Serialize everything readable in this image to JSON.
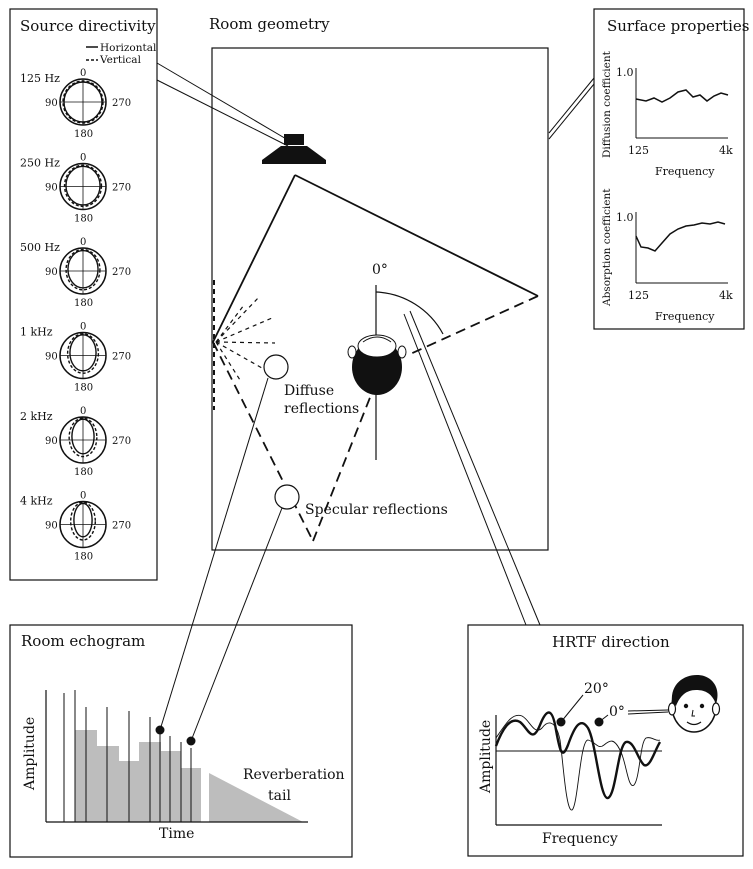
{
  "source_directivity": {
    "title": "Source directivity",
    "legend": {
      "horizontal": "Horizontal",
      "vertical": "Vertical"
    },
    "angles": {
      "top": "0",
      "left": "90",
      "right": "270",
      "bottom": "180"
    },
    "bands": [
      {
        "label": "125 Hz"
      },
      {
        "label": "250 Hz"
      },
      {
        "label": "500 Hz"
      },
      {
        "label": "1 kHz"
      },
      {
        "label": "2 kHz"
      },
      {
        "label": "4 kHz"
      }
    ]
  },
  "room_geometry": {
    "title": "Room geometry",
    "head_angle": "0°",
    "diffuse_label_1": "Diffuse",
    "diffuse_label_2": "reflections",
    "specular_label": "Specular reflections"
  },
  "surface_properties": {
    "title": "Surface properties",
    "diffusion": {
      "ylabel": "Diffusion coefficient",
      "ymax_label": "1.0",
      "x_start": "125",
      "x_end": "4k",
      "xlabel": "Frequency"
    },
    "absorption": {
      "ylabel": "Absorption coefficient",
      "ymax_label": "1.0",
      "x_start": "125",
      "x_end": "4k",
      "xlabel": "Frequency"
    }
  },
  "room_echogram": {
    "title": "Room echogram",
    "ylabel": "Amplitude",
    "xlabel": "Time",
    "tail_label_1": "Reverberation",
    "tail_label_2": "tail"
  },
  "hrtf": {
    "title": "HRTF direction",
    "ylabel": "Amplitude",
    "xlabel": "Frequency",
    "label_20": "20°",
    "label_0": "0°"
  }
}
